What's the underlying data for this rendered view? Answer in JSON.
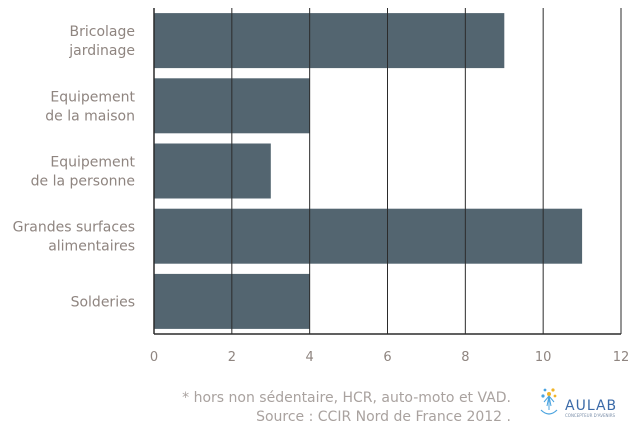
{
  "chart_data": {
    "type": "bar",
    "orientation": "horizontal",
    "categories": [
      [
        "Bricolage",
        "jardinage"
      ],
      [
        "Equipement",
        "de la maison"
      ],
      [
        "Equipement",
        "de la personne"
      ],
      [
        "Grandes surfaces",
        "alimentaires"
      ],
      [
        "Solderies"
      ]
    ],
    "values": [
      9,
      4,
      3,
      11,
      4
    ],
    "xlim": [
      0,
      12
    ],
    "xticks": [
      "0",
      "2",
      "4",
      "6",
      "8",
      "10",
      "12"
    ],
    "grid": true,
    "legend": "none",
    "bar_color": "#536570"
  },
  "footnote": {
    "line1": "* hors non sédentaire, HCR, auto-moto et VAD.",
    "line2": "Source :  CCIR Nord de France 2012 ."
  },
  "logo": {
    "text": "AULAB",
    "tagline": "CONCEPTEUR D'AVENIRS"
  }
}
